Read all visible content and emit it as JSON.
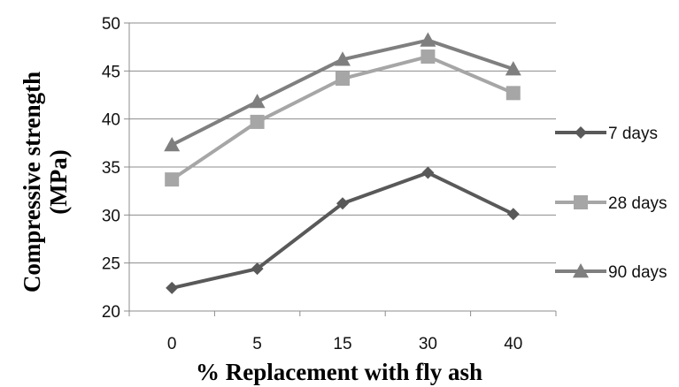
{
  "chart_data": {
    "type": "line",
    "title": "",
    "xlabel": "% Replacement with fly ash",
    "ylabel_line1": "Compressive strength",
    "ylabel_line2": "(MPa)",
    "categories": [
      "0",
      "5",
      "15",
      "30",
      "40"
    ],
    "y_ticks": [
      "20",
      "25",
      "30",
      "35",
      "40",
      "45",
      "50"
    ],
    "ylim": [
      20,
      50
    ],
    "grid": "horizontal",
    "legend_position": "right",
    "series": [
      {
        "name": "7 days",
        "values": [
          22.4,
          24.4,
          31.2,
          34.4,
          30.1
        ],
        "marker": "diamond",
        "color": "#595959"
      },
      {
        "name": "28 days",
        "values": [
          33.7,
          39.7,
          44.2,
          46.5,
          42.7
        ],
        "marker": "square",
        "color": "#a6a6a6"
      },
      {
        "name": "90 days",
        "values": [
          37.3,
          41.8,
          46.2,
          48.2,
          45.2
        ],
        "marker": "triangle",
        "color": "#7f7f7f"
      }
    ]
  }
}
